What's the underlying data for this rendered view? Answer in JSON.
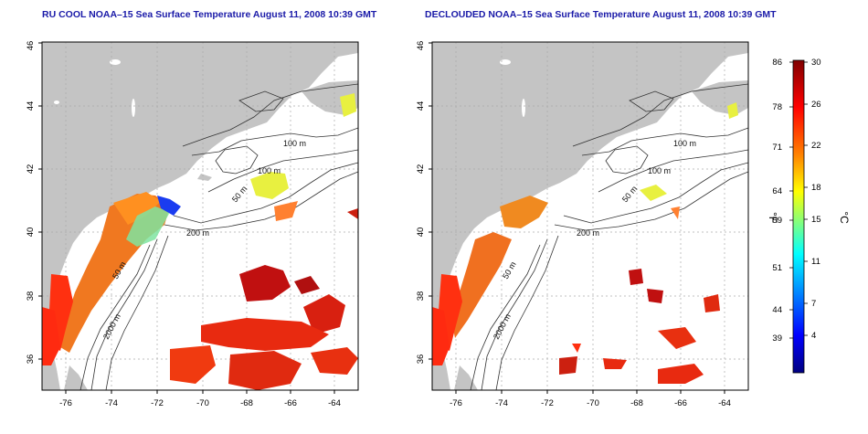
{
  "maps": [
    {
      "title": "RU COOL NOAA–15 Sea Surface Temperature August 11, 2008 10:39 GMT",
      "y_ticks": [
        "36",
        "38",
        "40",
        "42",
        "44",
        "46"
      ],
      "x_ticks": [
        "-76",
        "-74",
        "-72",
        "-70",
        "-68",
        "-66",
        "-64"
      ],
      "contour_labels": [
        "100 m",
        "100 m",
        "50 m",
        "200 m",
        "50 m",
        "2000 m"
      ]
    },
    {
      "title": "DECLOUDED NOAA–15 Sea Surface Temperature August 11, 2008 10:39 GMT",
      "y_ticks": [
        "36",
        "38",
        "40",
        "42",
        "44",
        "46"
      ],
      "x_ticks": [
        "-76",
        "-74",
        "-72",
        "-70",
        "-68",
        "-66",
        "-64"
      ],
      "contour_labels": [
        "100 m",
        "100 m",
        "50 m",
        "200 m",
        "50 m",
        "2000 m"
      ]
    }
  ],
  "colorbar": {
    "f_ticks": [
      "86",
      "78",
      "71",
      "64",
      "59",
      "51",
      "44",
      "39"
    ],
    "c_ticks": [
      "30",
      "26",
      "22",
      "18",
      "15",
      "11",
      "7",
      "4"
    ],
    "f_unit": "°F",
    "c_unit": "°C",
    "colors": [
      "#000080",
      "#0000ff",
      "#0080ff",
      "#00ffff",
      "#80ff80",
      "#ffff00",
      "#ff8000",
      "#ff0000",
      "#800000"
    ]
  },
  "colors": {
    "land": "#c4c4c4",
    "ocean": "#ffffff",
    "title": "#1a1aa8",
    "contour": "#333333"
  }
}
